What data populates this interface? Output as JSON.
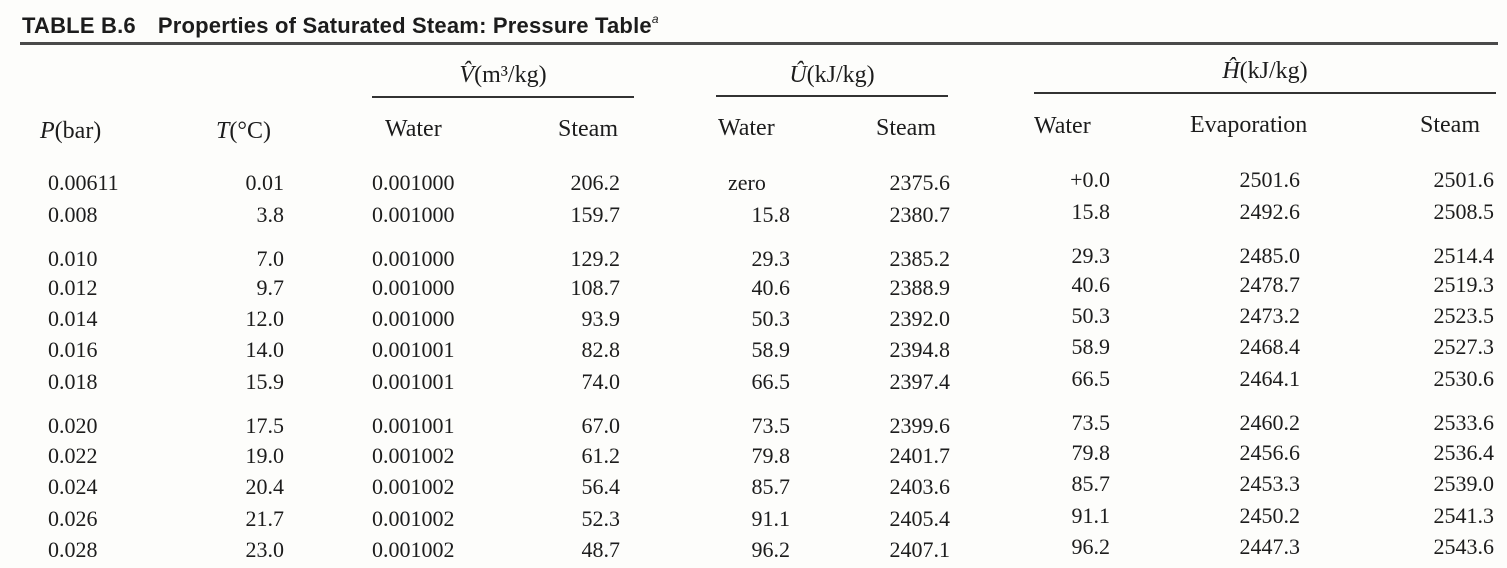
{
  "title": {
    "tag": "TABLE B.6",
    "text": "Properties of Saturated Steam: Pressure Table",
    "footnote_mark": "a"
  },
  "groups": {
    "volume": {
      "symbol": "V̂",
      "unit": "(m³/kg)"
    },
    "energy": {
      "symbol": "Û",
      "unit": "(kJ/kg)"
    },
    "enthalpy": {
      "symbol": "Ĥ",
      "unit": "(kJ/kg)"
    }
  },
  "columns": {
    "p_symbol": "P",
    "p_unit": "(bar)",
    "t_symbol": "T",
    "t_unit": "(°C)",
    "v_water": "Water",
    "v_steam": "Steam",
    "u_water": "Water",
    "u_steam": "Steam",
    "h_water": "Water",
    "h_evap": "Evaporation",
    "h_steam": "Steam"
  },
  "rows": [
    [
      "0.00611",
      "0.01",
      "0.001000",
      "206.2",
      "zero",
      "2375.6",
      "+0.0",
      "2501.6",
      "2501.6"
    ],
    [
      "0.008",
      "3.8",
      "0.001000",
      "159.7",
      "15.8",
      "2380.7",
      "15.8",
      "2492.6",
      "2508.5"
    ],
    [
      "0.010",
      "7.0",
      "0.001000",
      "129.2",
      "29.3",
      "2385.2",
      "29.3",
      "2485.0",
      "2514.4"
    ],
    [
      "0.012",
      "9.7",
      "0.001000",
      "108.7",
      "40.6",
      "2388.9",
      "40.6",
      "2478.7",
      "2519.3"
    ],
    [
      "0.014",
      "12.0",
      "0.001000",
      "93.9",
      "50.3",
      "2392.0",
      "50.3",
      "2473.2",
      "2523.5"
    ],
    [
      "0.016",
      "14.0",
      "0.001001",
      "82.8",
      "58.9",
      "2394.8",
      "58.9",
      "2468.4",
      "2527.3"
    ],
    [
      "0.018",
      "15.9",
      "0.001001",
      "74.0",
      "66.5",
      "2397.4",
      "66.5",
      "2464.1",
      "2530.6"
    ],
    [
      "0.020",
      "17.5",
      "0.001001",
      "67.0",
      "73.5",
      "2399.6",
      "73.5",
      "2460.2",
      "2533.6"
    ],
    [
      "0.022",
      "19.0",
      "0.001002",
      "61.2",
      "79.8",
      "2401.7",
      "79.8",
      "2456.6",
      "2536.4"
    ],
    [
      "0.024",
      "20.4",
      "0.001002",
      "56.4",
      "85.7",
      "2403.6",
      "85.7",
      "2453.3",
      "2539.0"
    ],
    [
      "0.026",
      "21.7",
      "0.001002",
      "52.3",
      "91.1",
      "2405.4",
      "91.1",
      "2450.2",
      "2541.3"
    ],
    [
      "0.028",
      "23.0",
      "0.001002",
      "48.7",
      "96.2",
      "2407.1",
      "96.2",
      "2447.3",
      "2543.6"
    ]
  ]
}
